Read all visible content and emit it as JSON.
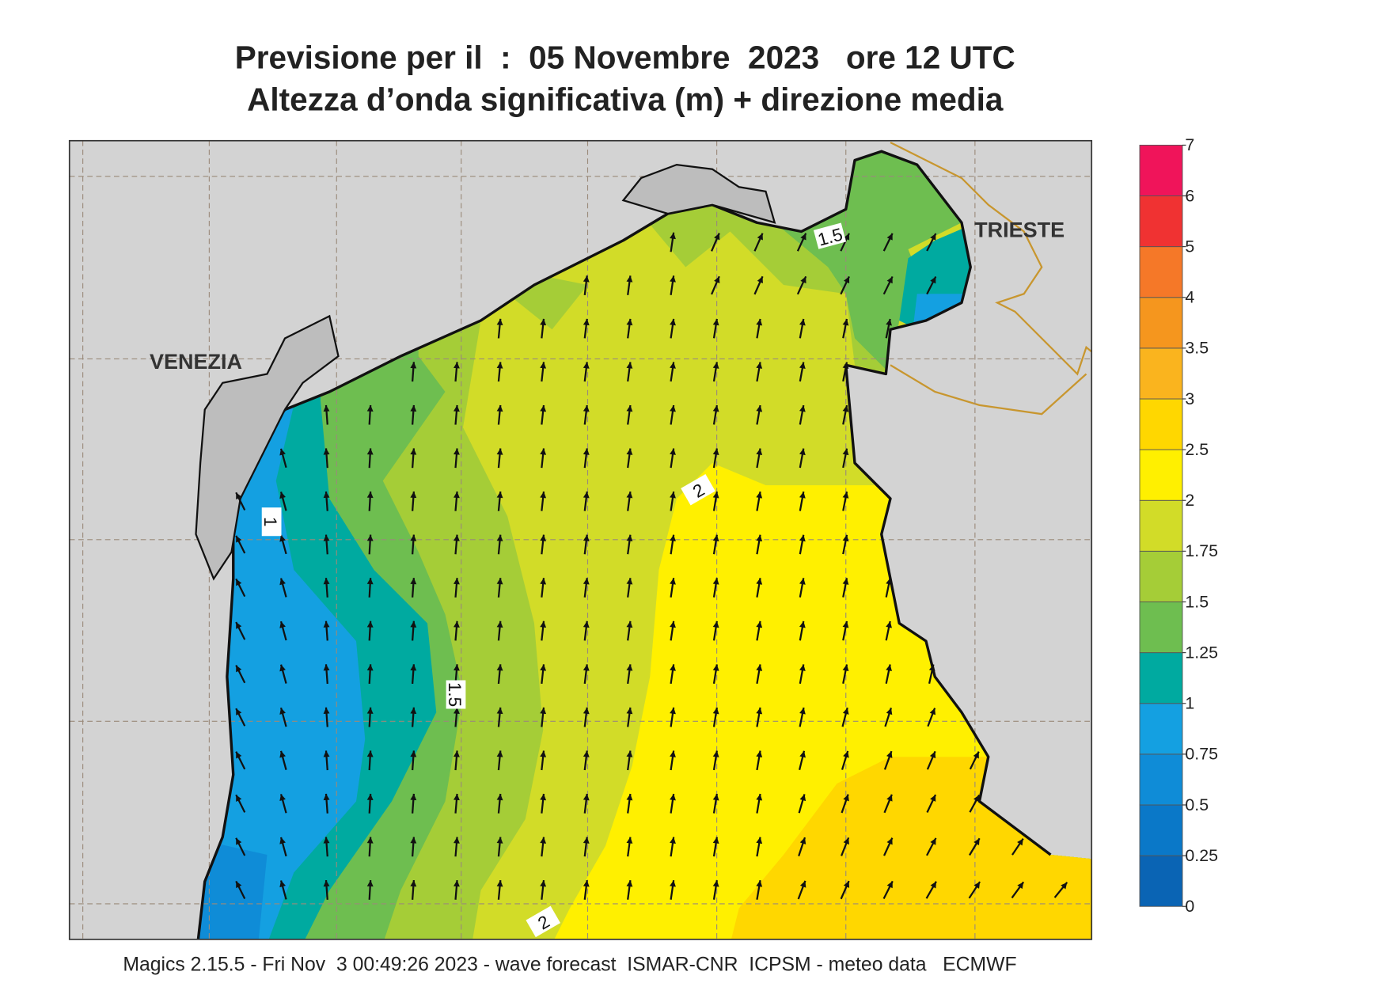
{
  "header": {
    "title": "Previsione per il  :  05 Novembre  2023   ore 12 UTC",
    "subtitle": "Altezza d’onda significativa (m) + direzione media"
  },
  "places": [
    "VENEZIA",
    "TRIESTE"
  ],
  "contour_labels": [
    1.5,
    2,
    1,
    1.5,
    2
  ],
  "legend": {
    "ticks": [
      0,
      0.25,
      0.5,
      0.75,
      1,
      1.25,
      1.5,
      1.75,
      2,
      2.5,
      3,
      3.5,
      4,
      5,
      6,
      7
    ],
    "colors": [
      "#0a64b4",
      "#0a78c8",
      "#0f8cd7",
      "#14a0e1",
      "#00aaa0",
      "#6ebe50",
      "#a5cd37",
      "#d2dc28",
      "#fff000",
      "#ffd700",
      "#fab41e",
      "#f5961e",
      "#f57828",
      "#f03232",
      "#f0145a"
    ]
  },
  "footer": "Magics 2.15.5 - Fri Nov  3 00:49:26 2023 - wave forecast  ISMAR-CNR  ICPSM - meteo data   ECMWF"
}
